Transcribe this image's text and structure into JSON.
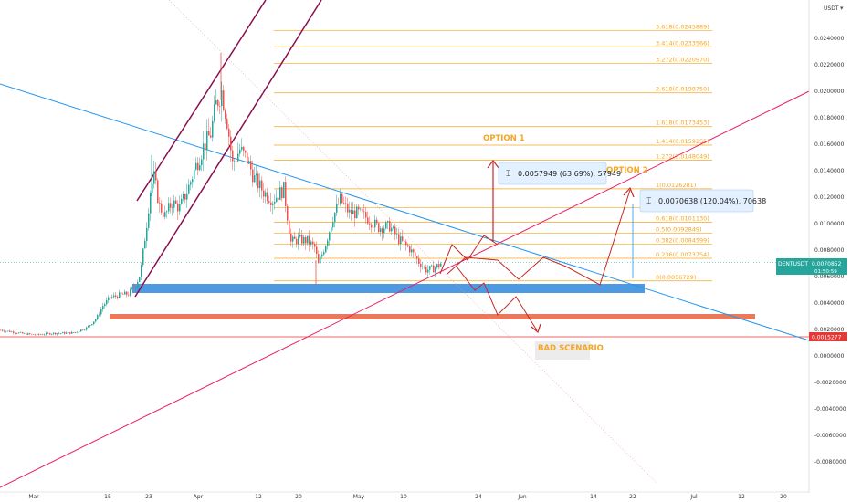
{
  "chart_data": {
    "type": "candlestick",
    "symbol": "DENTUSDT",
    "currency": "USDT",
    "y_ticks": [
      "0.0240000",
      "0.0220000",
      "0.0200000",
      "0.0180000",
      "0.0160000",
      "0.0140000",
      "0.0120000",
      "0.0100000",
      "0.0080000",
      "0.0060000",
      "0.0040000",
      "0.0020000",
      "0.0000000",
      "-0.0020000",
      "-0.0040000",
      "-0.0060000",
      "-0.0080000"
    ],
    "x_ticks": [
      "Mar",
      "15",
      "23",
      "Apr",
      "12",
      "20",
      "May",
      "10",
      "24",
      "Jun",
      "14",
      "22",
      "Jul",
      "12",
      "20"
    ],
    "price_series": [
      {
        "t": 0,
        "p": 0.00195
      },
      {
        "t": 25,
        "p": 0.00168
      },
      {
        "t": 40,
        "p": 0.0016
      },
      {
        "t": 55,
        "p": 0.0017
      },
      {
        "t": 80,
        "p": 0.00175
      },
      {
        "t": 95,
        "p": 0.00215
      },
      {
        "t": 105,
        "p": 0.00285
      },
      {
        "t": 112,
        "p": 0.0038
      },
      {
        "t": 120,
        "p": 0.0044
      },
      {
        "t": 130,
        "p": 0.0046
      },
      {
        "t": 140,
        "p": 0.0047
      },
      {
        "t": 148,
        "p": 0.0054
      },
      {
        "t": 153,
        "p": 0.0062
      },
      {
        "t": 160,
        "p": 0.01
      },
      {
        "t": 164,
        "p": 0.0125
      },
      {
        "t": 168,
        "p": 0.0135
      },
      {
        "t": 174,
        "p": 0.0113
      },
      {
        "t": 180,
        "p": 0.0106
      },
      {
        "t": 188,
        "p": 0.0116
      },
      {
        "t": 196,
        "p": 0.0112
      },
      {
        "t": 204,
        "p": 0.0124
      },
      {
        "t": 212,
        "p": 0.014
      },
      {
        "t": 222,
        "p": 0.0158
      },
      {
        "t": 230,
        "p": 0.0168
      },
      {
        "t": 236,
        "p": 0.019
      },
      {
        "t": 242,
        "p": 0.02
      },
      {
        "t": 248,
        "p": 0.0178
      },
      {
        "t": 254,
        "p": 0.0145
      },
      {
        "t": 262,
        "p": 0.0156
      },
      {
        "t": 270,
        "p": 0.0148
      },
      {
        "t": 278,
        "p": 0.0134
      },
      {
        "t": 288,
        "p": 0.0124
      },
      {
        "t": 298,
        "p": 0.0118
      },
      {
        "t": 310,
        "p": 0.0126
      },
      {
        "t": 318,
        "p": 0.0086
      },
      {
        "t": 326,
        "p": 0.0088
      },
      {
        "t": 336,
        "p": 0.0087
      },
      {
        "t": 344,
        "p": 0.0082
      },
      {
        "t": 348,
        "p": 0.0069
      },
      {
        "t": 356,
        "p": 0.0085
      },
      {
        "t": 364,
        "p": 0.0105
      },
      {
        "t": 372,
        "p": 0.0118
      },
      {
        "t": 382,
        "p": 0.0108
      },
      {
        "t": 392,
        "p": 0.0108
      },
      {
        "t": 402,
        "p": 0.0104
      },
      {
        "t": 414,
        "p": 0.0097
      },
      {
        "t": 426,
        "p": 0.0098
      },
      {
        "t": 436,
        "p": 0.0088
      },
      {
        "t": 448,
        "p": 0.0081
      },
      {
        "t": 458,
        "p": 0.0071
      },
      {
        "t": 466,
        "p": 0.0065
      },
      {
        "t": 474,
        "p": 0.0066
      },
      {
        "t": 482,
        "p": 0.007
      }
    ],
    "current_price": "0.0070852",
    "current_price_label": "DENTUSDT",
    "countdown": "01:50:59",
    "low_marker": "0.0015277",
    "fib_levels": [
      {
        "label": "3.618(0.0245889)",
        "p": 0.02459
      },
      {
        "label": "3.414(0.0233566)",
        "p": 0.02336
      },
      {
        "label": "3.272(0.0220970)",
        "p": 0.0221
      },
      {
        "label": "2.618(0.0198750)",
        "p": 0.01988
      },
      {
        "label": "1.618(0.0173453)",
        "p": 0.01733
      },
      {
        "label": "1.414(0.0159255)",
        "p": 0.01593
      },
      {
        "label": "1.272(0.0148049)",
        "p": 0.0148
      },
      {
        "label": "1(0.0126281)",
        "p": 0.01263
      },
      {
        "label": "0.786(0.0112113)",
        "p": 0.01121
      },
      {
        "label": "0.618(0.0101130)",
        "p": 0.01011
      },
      {
        "label": "0.5(0.0092849)",
        "p": 0.00928
      },
      {
        "label": "0.382(0.0084599)",
        "p": 0.00846
      },
      {
        "label": "0.236(0.0073754)",
        "p": 0.00738
      },
      {
        "label": "0(0.0056729)",
        "p": 0.00567
      }
    ],
    "zones": [
      {
        "name": "support",
        "top": 0.00575,
        "bottom": 0.005,
        "color": "#3a8fe0"
      },
      {
        "name": "lower-support",
        "top": 0.0031,
        "bottom": 0.0027,
        "color": "#e86a4a"
      }
    ],
    "measures": [
      {
        "text": "0.0057949 (63.69%), 57949"
      },
      {
        "text": "0.0070638 (120.04%), 70638"
      }
    ],
    "annotations": {
      "option1": "OPTION 1",
      "option2": "OPTION 2",
      "bad": "BAD SCENARIO"
    }
  },
  "colors": {
    "up_candle": "#26a69a",
    "down_candle": "#ef5350",
    "fib_line": "#f5a623",
    "fib_text": "#f5a623",
    "trend_blue": "#2196f3",
    "trend_red": "#e91e63",
    "channel": "#880e4f",
    "arrows": "#c62828",
    "price_box": "#26a69a",
    "low_box": "#e53935"
  }
}
